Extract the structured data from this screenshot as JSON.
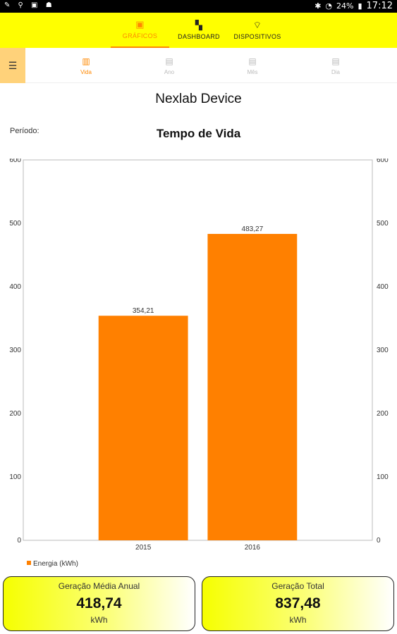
{
  "status": {
    "battery": "24%",
    "time": "17:12"
  },
  "top_tabs": [
    {
      "label": "GRÁFICOS",
      "icon": "chart-icon"
    },
    {
      "label": "DASHBOARD",
      "icon": "dashboard-icon"
    },
    {
      "label": "DISPOSITIVOS",
      "icon": "wifi-device-icon"
    }
  ],
  "sub_tabs": [
    {
      "label": "Vida"
    },
    {
      "label": "Ano"
    },
    {
      "label": "Mês"
    },
    {
      "label": "Dia"
    }
  ],
  "device_title": "Nexlab Device",
  "period_label": "Período:",
  "chart_data": {
    "type": "bar",
    "title": "Tempo de Vida",
    "categories": [
      "2015",
      "2016"
    ],
    "series": [
      {
        "name": "Energia (kWh)",
        "values": [
          354.21,
          483.27
        ],
        "labels": [
          "354,21",
          "483,27"
        ],
        "color": "#ff8000"
      }
    ],
    "ylim": [
      0,
      600
    ],
    "yticks": [
      0,
      100,
      200,
      300,
      400,
      500,
      600
    ],
    "right_axis": true,
    "grid": false,
    "legend": "bottom-left"
  },
  "cards": {
    "average": {
      "label": "Geração Média Anual",
      "value": "418,74",
      "unit": "kWh"
    },
    "total": {
      "label": "Geração Total",
      "value": "837,48",
      "unit": "kWh"
    }
  },
  "colors": {
    "topbar": "#ffff00",
    "accent": "#ff8800",
    "bar": "#ff8000"
  }
}
